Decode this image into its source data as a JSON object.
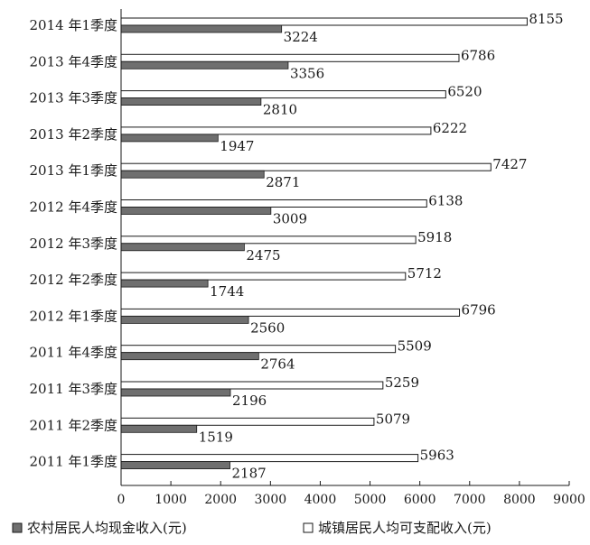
{
  "colors": {
    "rural": "#6f6f6f",
    "urban": "#ffffff",
    "stroke": "#1a1a1a"
  },
  "chart_data": {
    "type": "bar",
    "orientation": "horizontal",
    "categories": [
      "2014 年1季度",
      "2013 年4季度",
      "2013 年3季度",
      "2013 年2季度",
      "2013 年1季度",
      "2012 年4季度",
      "2012 年3季度",
      "2012 年2季度",
      "2012 年1季度",
      "2011 年4季度",
      "2011 年3季度",
      "2011 年2季度",
      "2011 年1季度"
    ],
    "series": [
      {
        "name": "城镇居民人均可支配收入(元)",
        "legend_marker": "□",
        "values": [
          8155,
          6786,
          6520,
          6222,
          7427,
          6138,
          5918,
          5712,
          6796,
          5509,
          5259,
          5079,
          5963
        ]
      },
      {
        "name": "农村居民人均现金收入(元)",
        "legend_marker": "■",
        "values": [
          3224,
          3356,
          2810,
          1947,
          2871,
          3009,
          2475,
          1744,
          2560,
          2764,
          2196,
          1519,
          2187
        ]
      }
    ],
    "legend_order": [
      1,
      0
    ],
    "xlim": [
      0,
      9000
    ],
    "xticks": [
      "0",
      "1000",
      "2000",
      "3000",
      "4000",
      "5000",
      "6000",
      "7000",
      "8000",
      "9000"
    ],
    "grid": false,
    "legend_position": "bottom"
  }
}
